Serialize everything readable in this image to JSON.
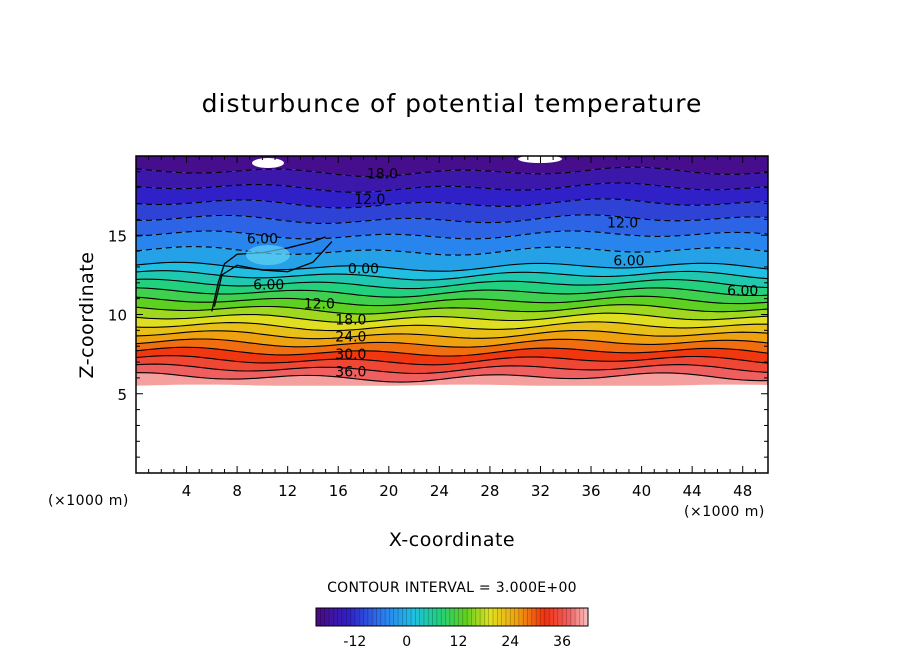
{
  "chart_data": {
    "type": "heatmap",
    "title": "disturbunce of potential temperature",
    "xlabel": "X-coordinate",
    "ylabel": "Z-coordinate",
    "x_unit": "(×1000 m)",
    "x_unit_right": "(×1000 m)",
    "xlim": [
      0,
      50
    ],
    "ylim": [
      0,
      20
    ],
    "x_ticks": [
      4,
      8,
      12,
      16,
      20,
      24,
      28,
      32,
      36,
      40,
      44,
      48
    ],
    "y_ticks": [
      5,
      10,
      15
    ],
    "contour_interval_text": "CONTOUR INTERVAL = 3.000E+00",
    "colorbar": {
      "min": -21,
      "max": 42,
      "ticks": [
        -12,
        0,
        12,
        24,
        36
      ],
      "colormap": "rainbow (purple → blue → cyan → green → yellow → orange → red → pink)"
    },
    "contour_labels": [
      {
        "text": "18.0",
        "x": 19.5,
        "z": 18.9
      },
      {
        "text": "12.0",
        "x": 18.5,
        "z": 17.3
      },
      {
        "text": "12.0",
        "x": 38.5,
        "z": 15.8
      },
      {
        "text": "6.00",
        "x": 10,
        "z": 14.8
      },
      {
        "text": "6.00",
        "x": 39,
        "z": 13.4
      },
      {
        "text": "6.00",
        "x": 48,
        "z": 11.5
      },
      {
        "text": "0.00",
        "x": 18,
        "z": 12.9
      },
      {
        "text": "6.00",
        "x": 10.5,
        "z": 11.9
      },
      {
        "text": "12.0",
        "x": 14.5,
        "z": 10.7
      },
      {
        "text": "18.0",
        "x": 17,
        "z": 9.7
      },
      {
        "text": "24.0",
        "x": 17,
        "z": 8.6
      },
      {
        "text": "30.0",
        "x": 17,
        "z": 7.5
      },
      {
        "text": "36.0",
        "x": 17,
        "z": 6.4
      }
    ],
    "field_description": {
      "terrain_top_z": 5.5,
      "top_value": -21,
      "bottom_value": 42,
      "negative_regions": "upper domain (z>13) is negative, minimum near top",
      "positive_regions": "lower domain (z<12) increases downward to ~42 near ground"
    }
  }
}
